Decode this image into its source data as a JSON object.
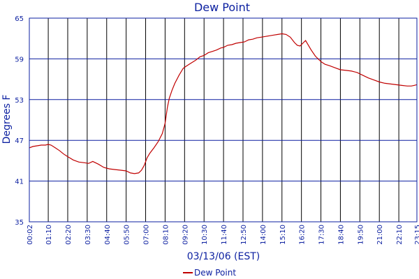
{
  "colors": {
    "axis": "#0b1fa0",
    "grid_v": "#000000",
    "grid_h": "#0b1fa0",
    "line": "#c00000",
    "text": "#0b1fa0",
    "background": "#ffffff"
  },
  "chart_data": {
    "type": "line",
    "title": "Dew Point",
    "xlabel": "03/13/06 (EST)",
    "ylabel": "Degrees F",
    "ylim": [
      35,
      65
    ],
    "yticks": [
      "65",
      "59",
      "53",
      "47",
      "41",
      "35"
    ],
    "ytick_values": [
      65,
      59,
      53,
      47,
      41,
      35
    ],
    "xlim_minutes": [
      2,
      1395
    ],
    "xticks": [
      "00:02",
      "01:10",
      "02:20",
      "03:30",
      "04:40",
      "05:50",
      "07:00",
      "08:10",
      "09:20",
      "10:30",
      "11:40",
      "12:50",
      "14:00",
      "15:10",
      "16:20",
      "17:30",
      "18:40",
      "19:50",
      "21:00",
      "22:10",
      "23:15"
    ],
    "xtick_minutes": [
      2,
      70,
      140,
      210,
      280,
      350,
      420,
      490,
      560,
      630,
      700,
      770,
      840,
      910,
      980,
      1050,
      1120,
      1190,
      1260,
      1330,
      1395
    ],
    "grid": true,
    "legend_position": "bottom-center",
    "series": [
      {
        "name": "Dew Point",
        "x_minutes": [
          2,
          15,
          30,
          45,
          60,
          70,
          80,
          95,
          110,
          125,
          140,
          160,
          180,
          200,
          215,
          230,
          250,
          270,
          290,
          310,
          330,
          350,
          365,
          380,
          395,
          405,
          415,
          425,
          435,
          450,
          465,
          480,
          490,
          498,
          505,
          515,
          525,
          540,
          555,
          565,
          580,
          600,
          615,
          630,
          645,
          660,
          675,
          690,
          700,
          715,
          730,
          745,
          760,
          775,
          790,
          805,
          820,
          835,
          850,
          865,
          880,
          895,
          910,
          925,
          940,
          955,
          965,
          975,
          985,
          995,
          1005,
          1015,
          1030,
          1050,
          1065,
          1080,
          1100,
          1120,
          1140,
          1160,
          1180,
          1200,
          1220,
          1240,
          1260,
          1280,
          1300,
          1320,
          1340,
          1360,
          1375,
          1385,
          1395
        ],
        "y": [
          45.9,
          46.1,
          46.2,
          46.3,
          46.3,
          46.4,
          46.3,
          45.9,
          45.5,
          45.0,
          44.6,
          44.1,
          43.8,
          43.7,
          43.6,
          43.9,
          43.5,
          43.0,
          42.8,
          42.7,
          42.6,
          42.5,
          42.2,
          42.1,
          42.2,
          42.6,
          43.3,
          44.4,
          45.1,
          45.9,
          46.8,
          48.0,
          49.5,
          51.8,
          53.2,
          54.4,
          55.4,
          56.6,
          57.6,
          57.9,
          58.3,
          58.8,
          59.3,
          59.5,
          59.9,
          60.1,
          60.3,
          60.6,
          60.7,
          61.0,
          61.1,
          61.3,
          61.4,
          61.5,
          61.8,
          61.9,
          62.1,
          62.2,
          62.3,
          62.4,
          62.5,
          62.6,
          62.7,
          62.6,
          62.2,
          61.4,
          61.0,
          60.9,
          61.3,
          61.7,
          61.0,
          60.3,
          59.4,
          58.6,
          58.2,
          58.0,
          57.7,
          57.4,
          57.3,
          57.2,
          57.0,
          56.6,
          56.2,
          55.9,
          55.6,
          55.4,
          55.3,
          55.2,
          55.1,
          55.0,
          55.0,
          55.1,
          55.2
        ]
      }
    ]
  }
}
